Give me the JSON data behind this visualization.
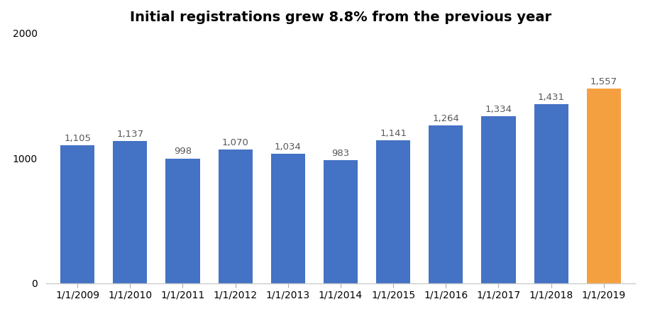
{
  "title": "Initial registrations grew 8.8% from the previous year",
  "categories": [
    "1/1/2009",
    "1/1/2010",
    "1/1/2011",
    "1/1/2012",
    "1/1/2013",
    "1/1/2014",
    "1/1/2015",
    "1/1/2016",
    "1/1/2017",
    "1/1/2018",
    "1/1/2019"
  ],
  "values": [
    1105,
    1137,
    998,
    1070,
    1034,
    983,
    1141,
    1264,
    1334,
    1431,
    1557
  ],
  "blue_color": "#4472C4",
  "orange_color": "#F5A040",
  "ylim": [
    0,
    2000
  ],
  "yticks": [
    0,
    1000,
    2000
  ],
  "title_fontsize": 14,
  "label_fontsize": 9.5,
  "tick_fontsize": 10,
  "background_color": "#ffffff",
  "bar_width": 0.65
}
